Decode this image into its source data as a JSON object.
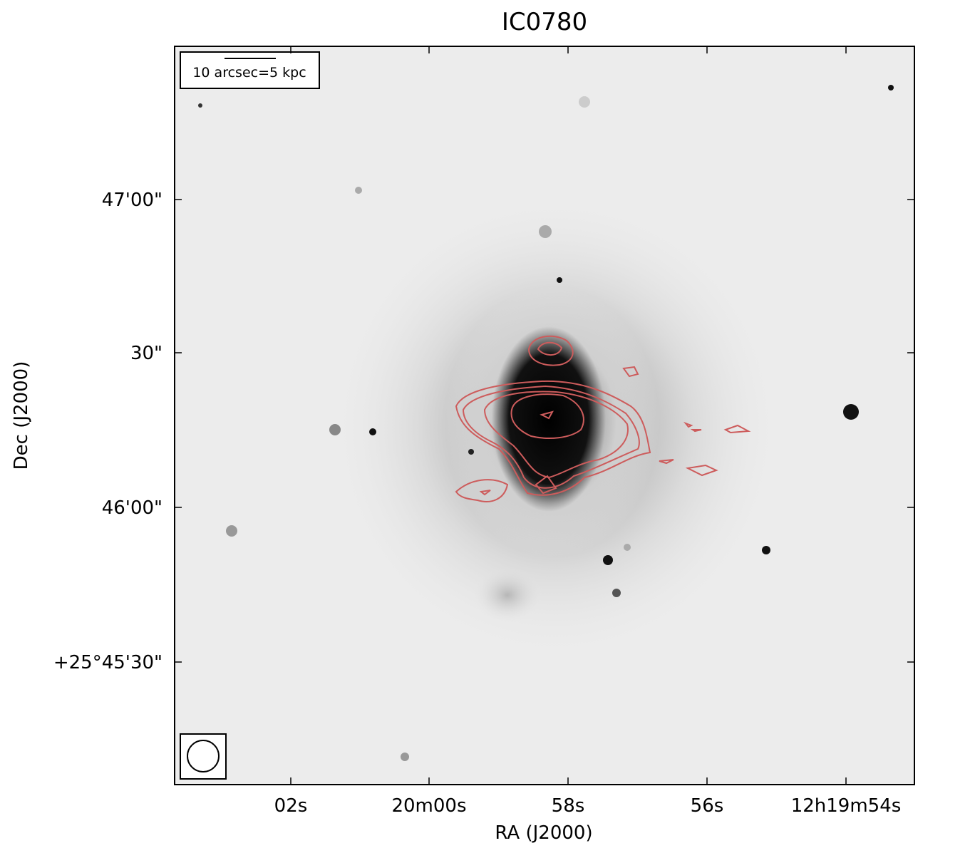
{
  "title": "IC0780",
  "x_axis": {
    "label": "RA (J2000)",
    "ticks": [
      "02s",
      "20m00s",
      "58s",
      "56s",
      "12h19m54s"
    ]
  },
  "y_axis": {
    "label": "Dec (J2000)",
    "ticks": [
      "47'00\"",
      "30\"",
      "46'00\"",
      "+25°45'30\""
    ]
  },
  "scale_bar": "10 arcsec=5 kpc"
}
